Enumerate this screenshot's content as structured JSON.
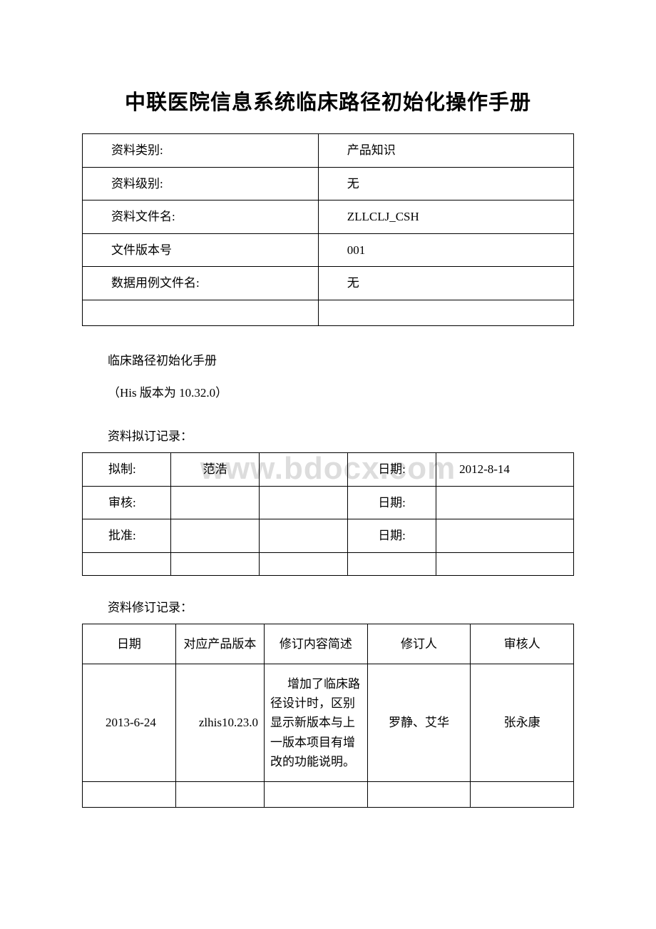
{
  "title": "中联医院信息系统临床路径初始化操作手册",
  "watermark": "www.bdocx.com",
  "info_table": {
    "rows": [
      {
        "label": "资料类别:",
        "value": "产品知识"
      },
      {
        "label": "资料级别:",
        "value": "无"
      },
      {
        "label": "资料文件名:",
        "value": "ZLLCLJ_CSH"
      },
      {
        "label": "文件版本号",
        "value": "001"
      },
      {
        "label": "数据用例文件名:",
        "value": "无"
      },
      {
        "label": "",
        "value": ""
      }
    ]
  },
  "subtitle1": "临床路径初始化手册",
  "subtitle2": "（His 版本为 10.32.0）",
  "approval_header": "资料拟订记录：",
  "approval_table": {
    "rows": [
      {
        "c1": "拟制:",
        "c2": "范浩",
        "c3": "",
        "c4": "日期:",
        "c5": "2012-8-14"
      },
      {
        "c1": "审核:",
        "c2": "",
        "c3": "",
        "c4": "日期:",
        "c5": ""
      },
      {
        "c1": "批准:",
        "c2": "",
        "c3": "",
        "c4": "日期:",
        "c5": ""
      },
      {
        "c1": "",
        "c2": "",
        "c3": "",
        "c4": "",
        "c5": ""
      }
    ]
  },
  "revision_header": "资料修订记录：",
  "revision_table": {
    "headers": [
      "日期",
      "对应产品版本",
      "修订内容简述",
      "修订人",
      "审核人"
    ],
    "rows": [
      {
        "date": "2013-6-24",
        "version": "zlhis10.23.0",
        "desc": "增加了临床路径设计时，区别显示新版本与上一版本项目有增改的功能说明。",
        "editor": "罗静、艾华",
        "reviewer": "张永康"
      },
      {
        "date": "",
        "version": "",
        "desc": "",
        "editor": "",
        "reviewer": ""
      }
    ]
  }
}
